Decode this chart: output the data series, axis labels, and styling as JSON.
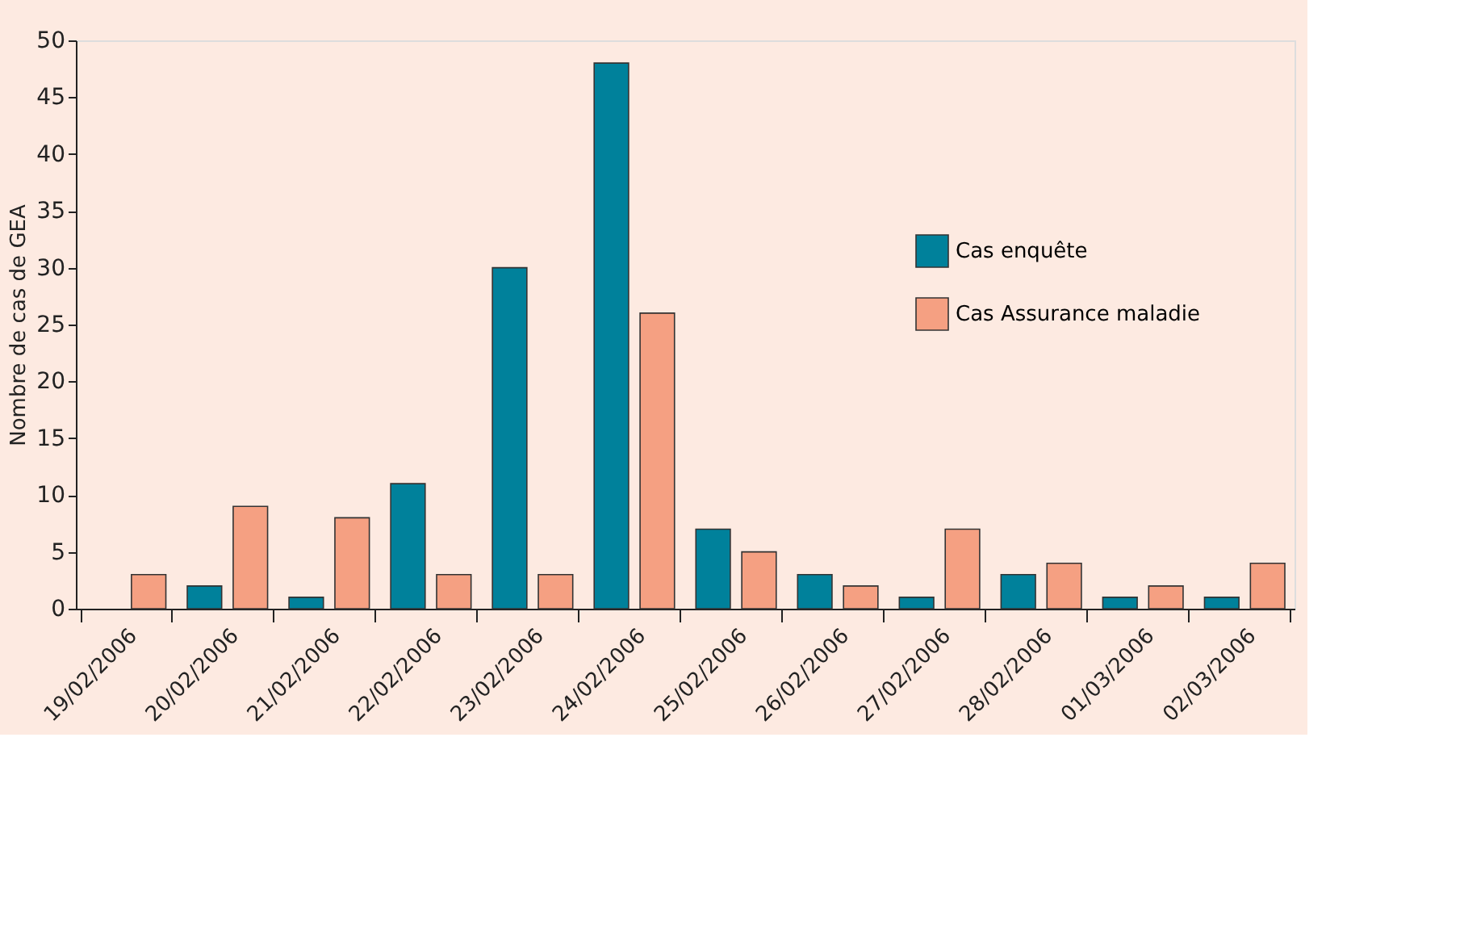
{
  "chart_data": {
    "type": "bar",
    "ylabel": "Nombre de cas de GEA",
    "categories": [
      "19/02/2006",
      "20/02/2006",
      "21/02/2006",
      "22/02/2006",
      "23/02/2006",
      "24/02/2006",
      "25/02/2006",
      "26/02/2006",
      "27/02/2006",
      "28/02/2006",
      "01/03/2006",
      "02/03/2006"
    ],
    "series": [
      {
        "name": "Cas enquête",
        "color": "#00819b",
        "values": [
          null,
          2,
          1,
          11,
          30,
          48,
          7,
          3,
          1,
          3,
          1,
          1
        ]
      },
      {
        "name": "Cas Assurance maladie",
        "color": "#f5a082",
        "values": [
          3,
          9,
          8,
          3,
          3,
          26,
          5,
          2,
          7,
          4,
          2,
          4
        ]
      }
    ],
    "ylim": [
      0,
      50
    ],
    "yticks": [
      0,
      5,
      10,
      15,
      20,
      25,
      30,
      35,
      40,
      45,
      50
    ],
    "grid": false,
    "legend": "top right"
  }
}
